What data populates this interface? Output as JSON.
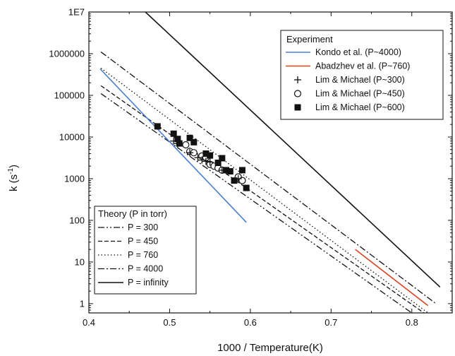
{
  "chart_data": {
    "type": "scatter",
    "xlabel": "1000 / Temperature(K)",
    "ylabel_main": "k (s",
    "ylabel_sup": "-1",
    "ylabel_close": ")",
    "xlim": [
      0.4,
      0.85
    ],
    "ylim": [
      0.6,
      10000000
    ],
    "y_scale": "log",
    "x_ticks": [
      {
        "value": 0.4,
        "label": "0.4"
      },
      {
        "value": 0.5,
        "label": "0.5"
      },
      {
        "value": 0.6,
        "label": "0.6"
      },
      {
        "value": 0.7,
        "label": "0.7"
      },
      {
        "value": 0.8,
        "label": "0.8"
      }
    ],
    "y_ticks": [
      {
        "value": 1,
        "label": "1"
      },
      {
        "value": 10,
        "label": "10"
      },
      {
        "value": 100,
        "label": "100"
      },
      {
        "value": 1000,
        "label": "1000"
      },
      {
        "value": 10000,
        "label": "10000"
      },
      {
        "value": 100000,
        "label": "100000"
      },
      {
        "value": 1000000,
        "label": "1000000"
      },
      {
        "value": 10000000,
        "label": "1E7"
      }
    ],
    "experiment_legend": {
      "title": "Experiment",
      "placement": "top-right",
      "entries": [
        {
          "key": "kondo",
          "label": "Kondo et al. (P~4000)"
        },
        {
          "key": "abadzhev",
          "label": "Abadzhev et al. (P~760)"
        },
        {
          "key": "lim300",
          "label": "Lim & Michael (P~300)"
        },
        {
          "key": "lim450",
          "label": "Lim & Michael (P~450)"
        },
        {
          "key": "lim600",
          "label": "Lim & Michael (P~600)"
        }
      ]
    },
    "theory_legend": {
      "title": "Theory (P in torr)",
      "placement": "bottom-left",
      "entries": [
        {
          "key": "p300",
          "label": "P = 300"
        },
        {
          "key": "p450",
          "label": "P = 450"
        },
        {
          "key": "p760",
          "label": "P = 760"
        },
        {
          "key": "p4000",
          "label": "P = 4000"
        },
        {
          "key": "pinf",
          "label": "P = infinity"
        }
      ]
    },
    "lines": [
      {
        "key": "pinf",
        "style": "solid",
        "color": "#111111",
        "points": [
          [
            0.47,
            10000000
          ],
          [
            0.835,
            2.5
          ]
        ]
      },
      {
        "key": "p4000",
        "style": "dashdot",
        "color": "#111111",
        "points": [
          [
            0.415,
            1100000
          ],
          [
            0.83,
            1.0
          ]
        ]
      },
      {
        "key": "p760",
        "style": "dot",
        "color": "#111111",
        "points": [
          [
            0.415,
            450000
          ],
          [
            0.82,
            0.6
          ]
        ]
      },
      {
        "key": "p450",
        "style": "dash",
        "color": "#111111",
        "points": [
          [
            0.415,
            170000
          ],
          [
            0.815,
            0.6
          ]
        ]
      },
      {
        "key": "p300",
        "style": "dashdotdot",
        "color": "#111111",
        "points": [
          [
            0.415,
            110000
          ],
          [
            0.8,
            0.6
          ]
        ]
      },
      {
        "key": "kondo",
        "style": "solid",
        "color": "#4a7fd4",
        "points": [
          [
            0.414,
            430000
          ],
          [
            0.595,
            90
          ]
        ]
      },
      {
        "key": "abadzhev",
        "style": "solid",
        "color": "#d9411e",
        "points": [
          [
            0.73,
            20
          ],
          [
            0.82,
            0.9
          ]
        ]
      }
    ],
    "series": [
      {
        "key": "lim300",
        "marker": "plus",
        "points": [
          [
            0.505,
            8000
          ],
          [
            0.51,
            7000
          ],
          [
            0.525,
            4200
          ],
          [
            0.535,
            3200
          ],
          [
            0.54,
            2800
          ],
          [
            0.545,
            2600
          ],
          [
            0.55,
            2500
          ],
          [
            0.565,
            1600
          ],
          [
            0.585,
            1000
          ]
        ]
      },
      {
        "key": "lim450",
        "marker": "circle",
        "points": [
          [
            0.52,
            6500
          ],
          [
            0.525,
            4500
          ],
          [
            0.53,
            4200
          ],
          [
            0.54,
            3500
          ],
          [
            0.545,
            3200
          ],
          [
            0.55,
            2200
          ],
          [
            0.555,
            2000
          ],
          [
            0.56,
            1800
          ],
          [
            0.565,
            1600
          ],
          [
            0.585,
            1100
          ],
          [
            0.59,
            900
          ]
        ]
      },
      {
        "key": "lim600",
        "marker": "square",
        "points": [
          [
            0.485,
            18000
          ],
          [
            0.505,
            12000
          ],
          [
            0.51,
            9000
          ],
          [
            0.512,
            7000
          ],
          [
            0.525,
            9500
          ],
          [
            0.53,
            7500
          ],
          [
            0.545,
            4000
          ],
          [
            0.55,
            3600
          ],
          [
            0.56,
            2400
          ],
          [
            0.565,
            3100
          ],
          [
            0.57,
            1600
          ],
          [
            0.575,
            1500
          ],
          [
            0.58,
            900
          ],
          [
            0.59,
            1600
          ],
          [
            0.595,
            600
          ]
        ]
      }
    ]
  }
}
